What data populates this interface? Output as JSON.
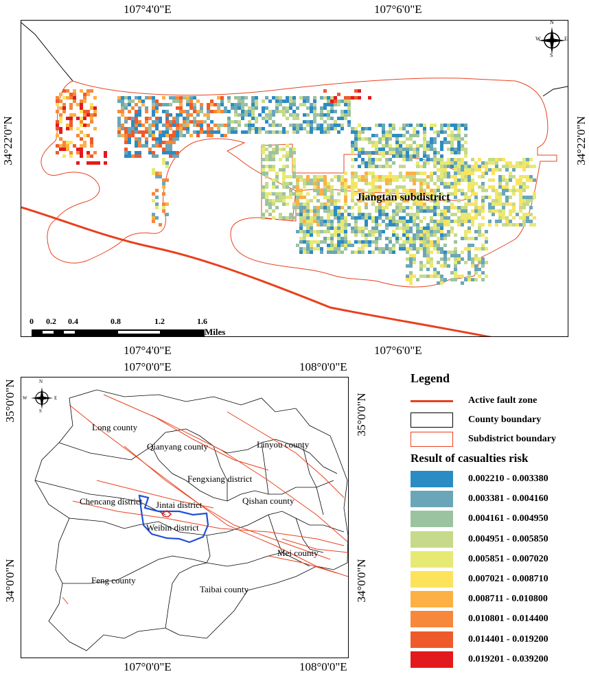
{
  "top_map": {
    "coords_top": [
      "107°4'0\"E",
      "107°6'0\"E"
    ],
    "coords_bottom": [
      "107°4'0\"E",
      "107°6'0\"E"
    ],
    "coords_left": "34°22'0\"N",
    "coords_right": "34°22'0\"N",
    "district_label": "Jiangtan subdistrict",
    "scale_ticks": [
      "0",
      "0.2",
      "0.4",
      "0.8",
      "1.2",
      "1.6"
    ],
    "scale_unit": "Miles",
    "north_arrow": {
      "n": "N",
      "s": "S",
      "e": "E",
      "w": "W"
    }
  },
  "bottom_map": {
    "coords_top": [
      "107°0'0\"E",
      "108°0'0\"E"
    ],
    "coords_bottom": [
      "107°0'0\"E",
      "108°0'0\"E"
    ],
    "coords_left": [
      "35°0'0\"N",
      "34°0'0\"N"
    ],
    "coords_right": [
      "35°0'0\"N",
      "34°0'0\"N"
    ],
    "north_arrow": {
      "n": "N",
      "s": "S",
      "e": "E",
      "w": "W"
    },
    "counties": [
      "Long county",
      "Qianyang county",
      "Linyou county",
      "Fengxiang district",
      "Chencang district",
      "Jintai district",
      "Qishan county",
      "Weibin district",
      "Mei county",
      "Feng county",
      "Taibai county"
    ]
  },
  "legend": {
    "title": "Legend",
    "items": [
      {
        "label": "Active fault zone",
        "color": "#e8401c"
      },
      {
        "label": "County boundary",
        "color": "#000000"
      },
      {
        "label": "Subdistrict boundary",
        "color": "#e8401c"
      }
    ],
    "risk_title": "Result of casualties risk",
    "classes": [
      {
        "label": "0.002210 - 0.003380",
        "color": "#2b8cc4"
      },
      {
        "label": "0.003381 - 0.004160",
        "color": "#6aa6b8"
      },
      {
        "label": "0.004161 - 0.004950",
        "color": "#9cc3a0"
      },
      {
        "label": "0.004951 - 0.005850",
        "color": "#c7d98a"
      },
      {
        "label": "0.005851 - 0.007020",
        "color": "#e6ea74"
      },
      {
        "label": "0.007021 - 0.008710",
        "color": "#fde35c"
      },
      {
        "label": "0.008711 - 0.010800",
        "color": "#fdb043"
      },
      {
        "label": "0.010801 - 0.014400",
        "color": "#f7873a"
      },
      {
        "label": "0.014401 - 0.019200",
        "color": "#ef5a2b"
      },
      {
        "label": "0.019201 - 0.039200",
        "color": "#e31a1c"
      }
    ]
  }
}
